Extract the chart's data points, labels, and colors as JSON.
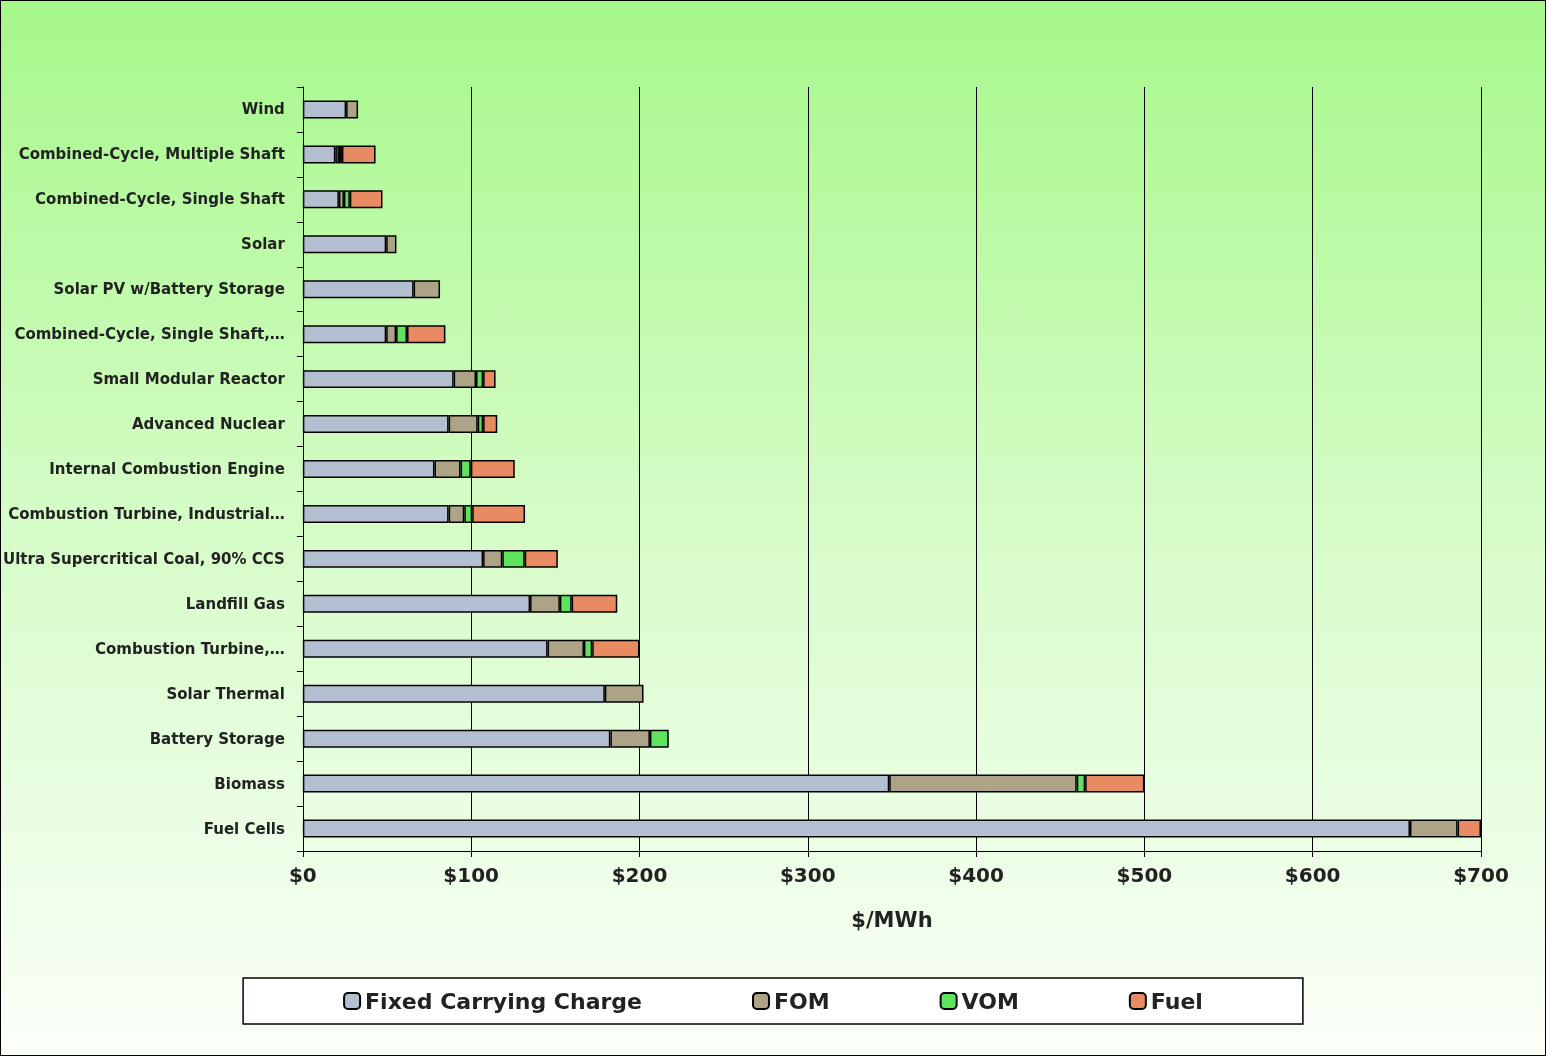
{
  "chart_data": {
    "type": "bar",
    "orientation": "horizontal",
    "stacked": true,
    "xlabel": "$/MWh",
    "categories": [
      "Wind",
      "Combined-Cycle, Multiple Shaft",
      "Combined-Cycle, Single Shaft",
      "Solar",
      "Solar PV w/Battery Storage",
      "Combined-Cycle, Single Shaft,…",
      "Small Modular Reactor",
      "Advanced Nuclear",
      "Internal Combustion Engine",
      "Combustion Turbine, Industrial…",
      "Ultra Supercritical Coal, 90% CCS",
      "Landfill Gas",
      "Combustion Turbine,…",
      "Solar Thermal",
      "Battery Storage",
      "Biomass",
      "Fuel Cells"
    ],
    "series": [
      {
        "name": "Fixed Carrying Charge",
        "color": "#b4c0d2",
        "values": [
          25.7,
          19.3,
          21.4,
          49.5,
          65.8,
          49.5,
          89.6,
          86.6,
          78.2,
          86.6,
          107.1,
          135,
          145.4,
          179.4,
          182.7,
          348.4,
          657.8
        ]
      },
      {
        "name": "FOM",
        "color": "#ada386",
        "values": [
          7.1,
          2.1,
          3,
          6.1,
          15.7,
          5.9,
          13.3,
          17.3,
          15.5,
          9.3,
          11.4,
          17.7,
          21.6,
          23,
          23.5,
          111.4,
          28.3
        ]
      },
      {
        "name": "VOM",
        "color": "#5fe35f",
        "values": [
          null,
          1.8,
          3.5,
          null,
          null,
          6.5,
          4.2,
          3.2,
          6.1,
          4.7,
          13.3,
          7,
          4.9,
          null,
          11.2,
          5,
          null
        ]
      },
      {
        "name": "Fuel",
        "color": "#e88a62",
        "values": [
          null,
          20,
          19.4,
          null,
          null,
          22.8,
          7.4,
          8.4,
          26.1,
          31.4,
          19.7,
          27.1,
          28.1,
          null,
          null,
          35.2,
          13.9
        ]
      }
    ],
    "xlim": [
      0,
      700
    ],
    "xticks": [
      {
        "value": 0,
        "label": "$0"
      },
      {
        "value": 100,
        "label": "$100"
      },
      {
        "value": 200,
        "label": "$200"
      },
      {
        "value": 300,
        "label": "$300"
      },
      {
        "value": 400,
        "label": "$400"
      },
      {
        "value": 500,
        "label": "$500"
      },
      {
        "value": 600,
        "label": "$600"
      },
      {
        "value": 700,
        "label": "$700"
      }
    ],
    "grid": "x",
    "legend": "bottom"
  }
}
